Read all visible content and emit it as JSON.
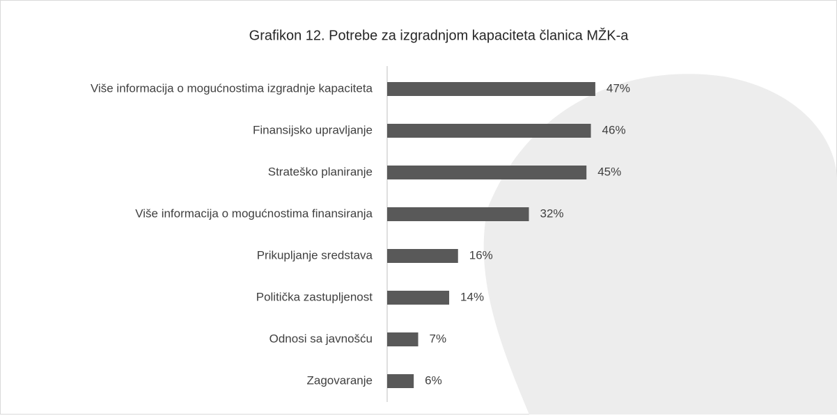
{
  "chart_data": {
    "type": "bar",
    "orientation": "horizontal",
    "title": "Grafikon 12. Potrebe za izgradnjom kapaciteta članica MŽK-a",
    "categories": [
      "Više informacija o mogućnostima izgradnje kapaciteta",
      "Finansijsko upravljanje",
      "Strateško planiranje",
      "Više informacija o mogućnostima finansiranja",
      "Prikupljanje sredstava",
      "Politička zastupljenost",
      "Odnosi sa javnošću",
      "Zagovaranje"
    ],
    "values": [
      47,
      46,
      45,
      32,
      16,
      14,
      7,
      6
    ],
    "value_labels": [
      "47%",
      "46%",
      "45%",
      "32%",
      "16%",
      "14%",
      "7%",
      "6%"
    ],
    "color": "#595959"
  }
}
